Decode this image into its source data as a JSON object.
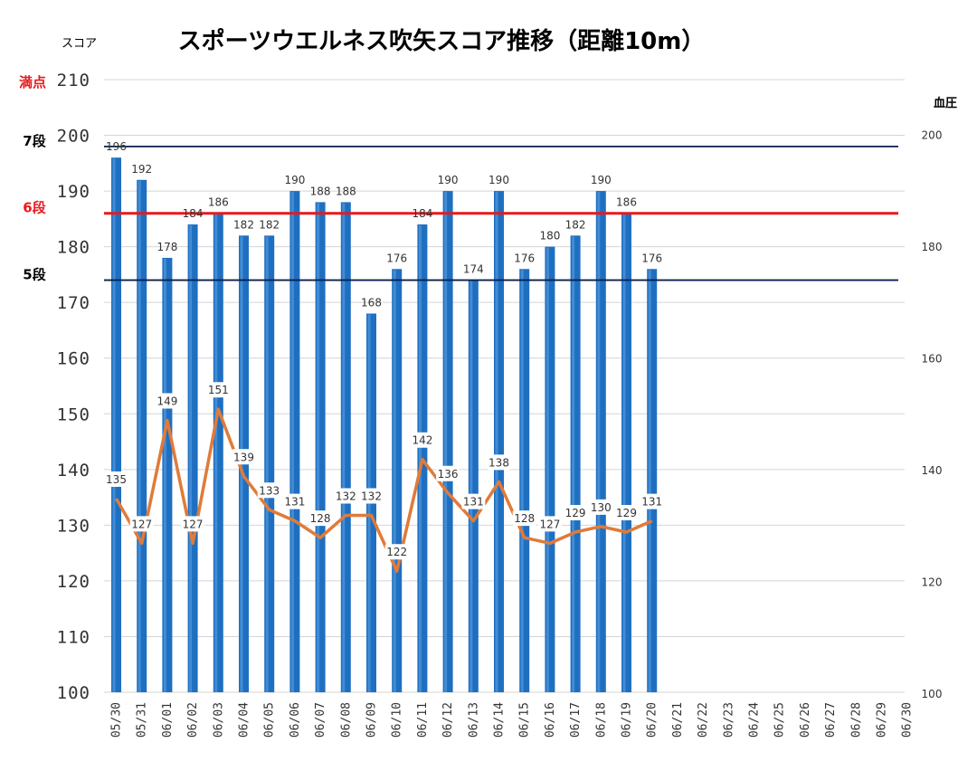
{
  "chart_data": {
    "type": "bar",
    "title": "スポーツウエルネス吹矢スコア推移（距離10m）",
    "ylabel": "スコア",
    "y2label": "血圧",
    "ylim": [
      100,
      210
    ],
    "y2lim": [
      100,
      210
    ],
    "grid": true,
    "categories": [
      "05/30",
      "05/31",
      "06/01",
      "06/02",
      "06/03",
      "06/04",
      "06/05",
      "06/06",
      "06/07",
      "06/08",
      "06/09",
      "06/10",
      "06/11",
      "06/12",
      "06/13",
      "06/14",
      "06/15",
      "06/16",
      "06/17",
      "06/18",
      "06/19",
      "06/20",
      "06/21",
      "06/22",
      "06/23",
      "06/24",
      "06/25",
      "06/26",
      "06/27",
      "06/28",
      "06/29",
      "06/30"
    ],
    "series": [
      {
        "type": "bar",
        "color": "#1f6fc1",
        "values": [
          196,
          192,
          178,
          184,
          186,
          182,
          182,
          190,
          188,
          188,
          168,
          176,
          184,
          190,
          174,
          190,
          176,
          180,
          182,
          190,
          186,
          176,
          null,
          null,
          null,
          null,
          null,
          null,
          null,
          null,
          null,
          null
        ]
      },
      {
        "type": "line",
        "axis": "right",
        "color": "#e07b39",
        "values": [
          135,
          127,
          149,
          127,
          151,
          139,
          133,
          131,
          128,
          132,
          132,
          122,
          142,
          136,
          131,
          138,
          128,
          127,
          129,
          130,
          129,
          131,
          null,
          null,
          null,
          null,
          null,
          null,
          null,
          null,
          null,
          null
        ]
      }
    ],
    "left_ticks": [
      100,
      110,
      120,
      130,
      140,
      150,
      160,
      170,
      180,
      190,
      200,
      210
    ],
    "right_ticks": [
      100,
      120,
      140,
      160,
      180,
      200
    ],
    "reference_lines": [
      {
        "label": "7段",
        "value": 198,
        "color": "#0a1f4d"
      },
      {
        "label": "6段",
        "value": 186,
        "color": "#e8191c"
      },
      {
        "label": "5段",
        "value": 174,
        "color": "#0a1f4d"
      }
    ],
    "top_marker": {
      "label": "満点",
      "value": 210,
      "color": "#e8191c"
    }
  }
}
